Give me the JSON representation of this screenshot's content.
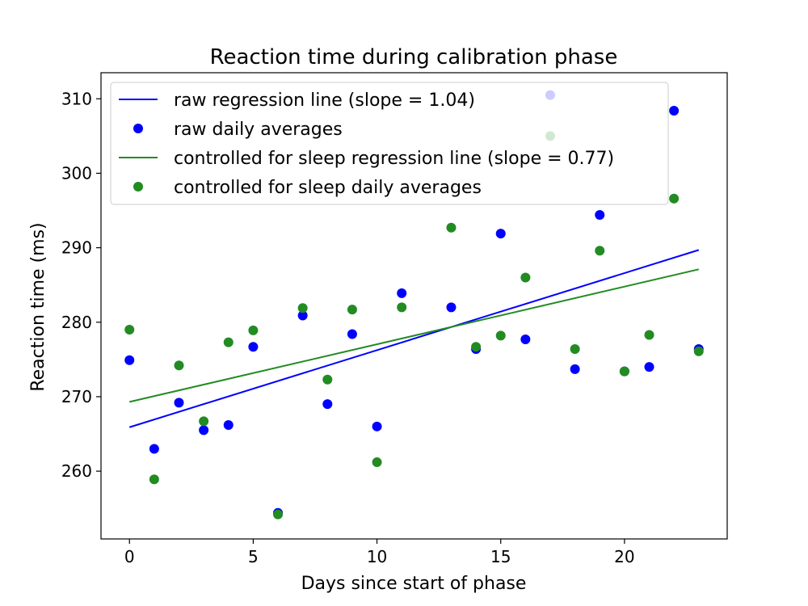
{
  "chart_data": {
    "type": "scatter",
    "title": "Reaction time during calibration phase",
    "xlabel": "Days since start of phase",
    "ylabel": "Reaction time (ms)",
    "xlim": [
      -1.15,
      24.15
    ],
    "ylim": [
      250.9,
      313.5
    ],
    "xticks": [
      0,
      5,
      10,
      15,
      20
    ],
    "yticks": [
      260,
      270,
      280,
      290,
      300,
      310
    ],
    "grid": false,
    "legend_position": "top-left",
    "series": [
      {
        "name": "raw regression line (slope = 1.04)",
        "kind": "line",
        "color": "#0000ff",
        "x": [
          0,
          23
        ],
        "y": [
          265.9,
          289.7
        ]
      },
      {
        "name": "raw daily averages",
        "kind": "scatter",
        "color": "#0000ff",
        "x": [
          0,
          1,
          2,
          3,
          4,
          5,
          6,
          7,
          8,
          9,
          10,
          11,
          13,
          14,
          15,
          16,
          17,
          18,
          19,
          20,
          21,
          22,
          23
        ],
        "y": [
          274.9,
          263.0,
          269.2,
          265.5,
          266.2,
          276.7,
          254.4,
          280.9,
          269.0,
          278.4,
          266.0,
          283.9,
          282.0,
          276.4,
          291.9,
          277.7,
          310.5,
          273.7,
          294.4,
          273.4,
          274.0,
          308.4,
          276.4
        ]
      },
      {
        "name": "controlled for sleep regression line (slope = 0.77)",
        "kind": "line",
        "color": "#228b22",
        "x": [
          0,
          23
        ],
        "y": [
          269.3,
          287.1
        ]
      },
      {
        "name": "controlled for sleep daily averages",
        "kind": "scatter",
        "color": "#228b22",
        "x": [
          0,
          1,
          2,
          3,
          4,
          5,
          6,
          7,
          8,
          9,
          10,
          11,
          13,
          14,
          15,
          16,
          17,
          18,
          19,
          20,
          21,
          22,
          23
        ],
        "y": [
          279.0,
          258.9,
          274.2,
          266.7,
          277.3,
          278.9,
          254.2,
          281.9,
          272.3,
          281.7,
          261.2,
          282.0,
          292.7,
          276.7,
          278.2,
          286.0,
          305.0,
          276.4,
          289.6,
          273.4,
          278.3,
          296.6,
          276.1
        ]
      }
    ]
  }
}
